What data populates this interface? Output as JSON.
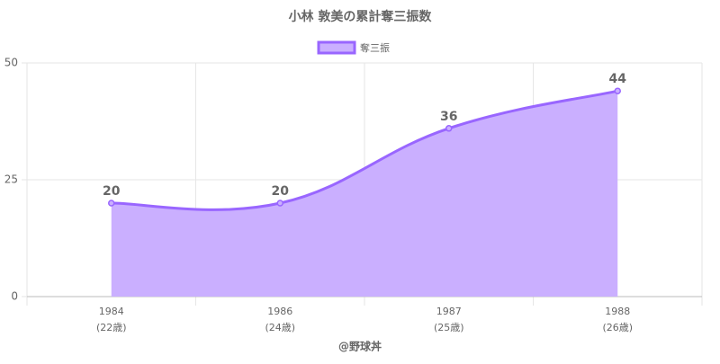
{
  "chart_data": {
    "type": "area",
    "title": "小林 敦美の累計奪三振数",
    "categories": [
      "1984",
      "1986",
      "1987",
      "1988"
    ],
    "age_labels": [
      "(22歳)",
      "(24歳)",
      "(25歳)",
      "(26歳)"
    ],
    "x_label": "@野球丼",
    "series": [
      {
        "name": "奪三振",
        "color": "#9966ff",
        "fill": "#caafff",
        "values": [
          20,
          20,
          36,
          44
        ]
      }
    ],
    "ylim": [
      0,
      50
    ],
    "yticks": [
      0,
      25,
      50
    ],
    "grid": true,
    "legend": "top"
  }
}
